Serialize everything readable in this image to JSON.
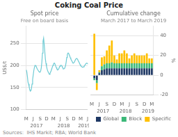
{
  "title": "Coking Coal Price",
  "source": "Sources:  IHS Markit; RBA; World Bank",
  "chart_data": [
    {
      "type": "line",
      "title": "Spot price",
      "subtitle": "Free on board basis",
      "ylabel": "US$/t",
      "categories": [
        "M",
        null,
        null,
        null,
        null,
        null,
        null,
        null,
        null,
        null,
        null,
        null,
        "J",
        null,
        null,
        null,
        null,
        null,
        null,
        null,
        null,
        null,
        null,
        null,
        "S",
        null,
        null,
        null,
        null,
        null,
        null,
        null,
        null,
        null,
        null,
        "D",
        null,
        null,
        null,
        null,
        null,
        null,
        null,
        null,
        null,
        null,
        null,
        "M",
        null,
        null,
        null,
        null,
        null,
        null,
        null,
        null,
        null,
        null,
        null,
        "J",
        null,
        null,
        null,
        null,
        null,
        null,
        null,
        null,
        null,
        null,
        null,
        "S",
        null,
        null,
        null,
        null,
        null,
        null,
        null,
        null,
        null,
        null,
        "D",
        null,
        null,
        null,
        null,
        null,
        null,
        null,
        null,
        null,
        null,
        null,
        "M",
        null,
        null,
        null,
        null,
        null,
        null,
        null,
        null,
        null,
        null,
        null,
        "J"
      ],
      "values": [
        190,
        185,
        175,
        162,
        158,
        152,
        145,
        142,
        143,
        148,
        158,
        168,
        178,
        188,
        195,
        200,
        200,
        198,
        195,
        192,
        190,
        188,
        186,
        185,
        185,
        188,
        195,
        208,
        228,
        255,
        262,
        248,
        232,
        215,
        205,
        198,
        192,
        188,
        185,
        182,
        180,
        182,
        185,
        188,
        192,
        196,
        200,
        203,
        205,
        205,
        202,
        198,
        195,
        192,
        190,
        190,
        192,
        195,
        198,
        200,
        200,
        200,
        198,
        195,
        192,
        192,
        193,
        196,
        200,
        208,
        218,
        225,
        228,
        228,
        225,
        222,
        218,
        215,
        212,
        210,
        207,
        205,
        205,
        207,
        210,
        213,
        215,
        216,
        215,
        213,
        210,
        208,
        205,
        202,
        200,
        198,
        197,
        196,
        196,
        197,
        198,
        200,
        202,
        204,
        205,
        205,
        204
      ],
      "color": "#6ECBD4",
      "ylim": [
        100,
        290
      ],
      "yticks": [
        100,
        150,
        200,
        250
      ],
      "grid": true,
      "annotations": [
        "2017",
        "2018",
        "2019"
      ]
    },
    {
      "type": "bar",
      "title": "Cumulative change",
      "subtitle": "March 2017 to March 2019",
      "ylabel": "%",
      "stacked": true,
      "categories": [
        "M",
        null,
        null,
        "J",
        null,
        null,
        "S",
        null,
        null,
        "D",
        null,
        null,
        "M",
        null,
        null,
        "J",
        null,
        null,
        "S",
        null,
        null,
        "D",
        null,
        null,
        "M"
      ],
      "series": [
        {
          "name": "Global",
          "color": "#1F3864",
          "values": [
            0,
            -3,
            -5,
            2,
            5,
            6,
            7,
            7,
            7,
            7,
            7,
            7,
            7,
            7,
            7,
            7,
            7,
            7,
            7,
            7,
            7,
            7,
            7,
            7,
            7
          ]
        },
        {
          "name": "Block",
          "color": "#3cb878",
          "values": [
            0,
            -2,
            -3,
            1,
            4,
            5,
            5,
            5,
            6,
            5,
            5,
            5,
            5,
            5,
            5,
            5,
            5,
            5,
            5,
            5,
            5,
            5,
            5,
            5,
            5
          ]
        },
        {
          "name": "Specific",
          "color": "#FFC000",
          "values": [
            0,
            42,
            -7,
            2,
            9,
            8,
            13,
            18,
            22,
            8,
            4,
            10,
            10,
            13,
            10,
            5,
            8,
            10,
            8,
            8,
            8,
            8,
            10,
            5,
            5
          ]
        }
      ],
      "ylim": [
        -20,
        50
      ],
      "yticks": [
        -20,
        0,
        20,
        40
      ],
      "grid": true,
      "legend": "bottom",
      "annotations": [
        "2017",
        "2018",
        "2019"
      ]
    }
  ]
}
